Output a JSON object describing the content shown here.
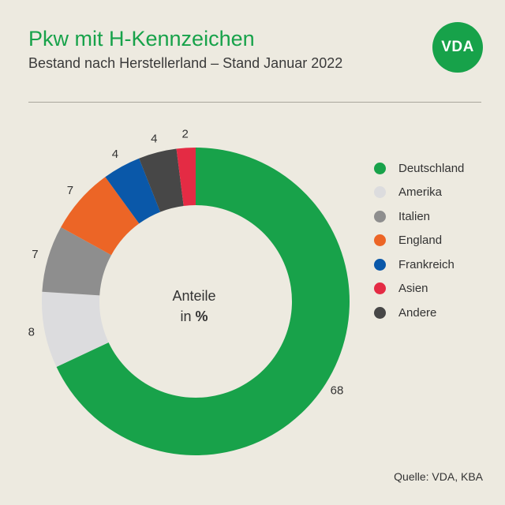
{
  "header": {
    "title": "Pkw mit H-Kennzeichen",
    "subtitle": "Bestand nach Herstellerland – Stand Januar 2022",
    "logo_text": "VDA"
  },
  "center": {
    "line1": "Anteile",
    "in_word": "in",
    "unit": "%"
  },
  "source": "Quelle: VDA, KBA",
  "chart_data": {
    "type": "pie",
    "style": "donut",
    "categories": [
      "Deutschland",
      "Amerika",
      "Italien",
      "England",
      "Frankreich",
      "Asien",
      "Andere"
    ],
    "values": [
      68,
      8,
      7,
      7,
      4,
      2,
      4
    ],
    "colors": [
      "#18a24a",
      "#dcdcde",
      "#8e8e8e",
      "#ec6526",
      "#0a58a9",
      "#e42b44",
      "#474747"
    ],
    "draw_order": [
      "Deutschland",
      "Amerika",
      "Italien",
      "England",
      "Frankreich",
      "Andere",
      "Asien"
    ],
    "unit": "%",
    "legend_position": "right"
  }
}
